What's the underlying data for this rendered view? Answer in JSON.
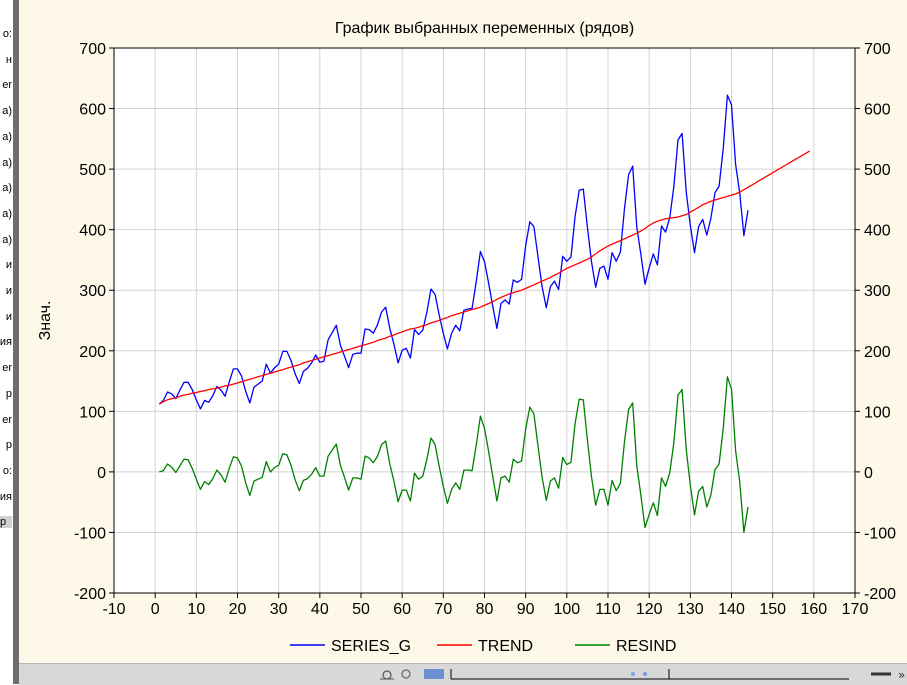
{
  "left_strip": {
    "fragments": [
      "o:",
      "н",
      "er",
      "a)",
      "a)",
      "a)",
      "a)",
      "a)",
      "a)",
      "и",
      "и",
      "и",
      "ия",
      "er",
      "р",
      "er",
      "р",
      "o:",
      "ия",
      "р"
    ],
    "selected_index": 19
  },
  "chart_data": {
    "type": "line",
    "title": "График выбранных переменных (рядов)",
    "ylabel": "Знач.",
    "xlabel": "",
    "xlim": [
      -10,
      170
    ],
    "ylim": [
      -200,
      700
    ],
    "xticks": [
      -10,
      0,
      10,
      20,
      30,
      40,
      50,
      60,
      70,
      80,
      90,
      100,
      110,
      120,
      130,
      140,
      150,
      160,
      170
    ],
    "yticks": [
      -200,
      -100,
      0,
      100,
      200,
      300,
      400,
      500,
      600,
      700
    ],
    "grid": true,
    "right_axis": true,
    "legend": "bottom",
    "series": [
      {
        "name": "SERIES_G",
        "color": "#0000ff",
        "x_start": 1,
        "values": [
          112,
          118,
          132,
          129,
          121,
          135,
          148,
          148,
          136,
          119,
          104,
          118,
          115,
          126,
          141,
          135,
          125,
          149,
          170,
          170,
          158,
          133,
          114,
          140,
          145,
          150,
          178,
          163,
          172,
          178,
          199,
          199,
          184,
          162,
          146,
          166,
          171,
          180,
          193,
          181,
          183,
          218,
          230,
          242,
          209,
          191,
          172,
          194,
          196,
          196,
          236,
          235,
          229,
          243,
          264,
          272,
          237,
          211,
          180,
          201,
          204,
          188,
          235,
          227,
          234,
          264,
          302,
          293,
          259,
          229,
          203,
          229,
          242,
          233,
          267,
          269,
          270,
          315,
          364,
          347,
          312,
          274,
          237,
          278,
          284,
          277,
          317,
          313,
          318,
          374,
          413,
          405,
          355,
          306,
          271,
          306,
          315,
          301,
          356,
          348,
          355,
          422,
          465,
          467,
          404,
          347,
          305,
          336,
          340,
          318,
          362,
          348,
          363,
          435,
          491,
          505,
          404,
          359,
          310,
          337,
          360,
          342,
          406,
          396,
          420,
          472,
          548,
          559,
          463,
          407,
          362,
          405,
          417,
          391,
          419,
          461,
          472,
          535,
          622,
          606,
          508,
          461,
          390,
          432
        ]
      },
      {
        "name": "TREND",
        "color": "#ff0000",
        "x_start": 1,
        "values": [
          112,
          116,
          119,
          121,
          122,
          125,
          127,
          128,
          130,
          131,
          133,
          134,
          136,
          137,
          138,
          140,
          142,
          143,
          145,
          147,
          149,
          151,
          153,
          155,
          157,
          159,
          161,
          163,
          165,
          167,
          169,
          171,
          173,
          175,
          177,
          180,
          182,
          184,
          186,
          188,
          190,
          192,
          194,
          196,
          198,
          200,
          202,
          204,
          206,
          208,
          210,
          212,
          214,
          217,
          219,
          221,
          224,
          226,
          229,
          231,
          234,
          236,
          237,
          239,
          241,
          243,
          246,
          248,
          250,
          253,
          255,
          258,
          260,
          262,
          264,
          266,
          268,
          270,
          272,
          275,
          278,
          281,
          285,
          288,
          291,
          294,
          296,
          298,
          300,
          303,
          306,
          309,
          312,
          315,
          318,
          321,
          325,
          328,
          332,
          336,
          339,
          342,
          345,
          348,
          351,
          355,
          360,
          365,
          369,
          373,
          376,
          379,
          382,
          385,
          388,
          391,
          394,
          398,
          402,
          407,
          411,
          414,
          416,
          418,
          419,
          420,
          421,
          423,
          425,
          429,
          433,
          437,
          441,
          444,
          447,
          449,
          451,
          453,
          455,
          457,
          459,
          462,
          466,
          470,
          474,
          478,
          482,
          486,
          490,
          494,
          498,
          502,
          506,
          510,
          514,
          518,
          522,
          526,
          530
        ]
      },
      {
        "name": "RESIND",
        "color": "#008000",
        "x_start": 1,
        "values": [
          0,
          2,
          13,
          8,
          -1,
          10,
          21,
          20,
          6,
          -12,
          -29,
          -16,
          -21,
          -11,
          3,
          -5,
          -17,
          6,
          25,
          23,
          9,
          -18,
          -39,
          -15,
          -12,
          -9,
          17,
          0,
          7,
          11,
          30,
          28,
          11,
          -13,
          -31,
          -14,
          -11,
          -4,
          7,
          -7,
          -7,
          26,
          36,
          46,
          11,
          -9,
          -30,
          -10,
          -10,
          -12,
          26,
          23,
          15,
          26,
          45,
          51,
          13,
          -15,
          -49,
          -30,
          -30,
          -48,
          -2,
          -12,
          -7,
          21,
          56,
          45,
          9,
          -24,
          -52,
          -29,
          -18,
          -29,
          3,
          3,
          2,
          45,
          92,
          72,
          34,
          -7,
          -48,
          -10,
          -7,
          -17,
          21,
          15,
          18,
          71,
          107,
          96,
          43,
          -9,
          -47,
          -15,
          -10,
          -27,
          24,
          12,
          16,
          80,
          120,
          119,
          53,
          -8,
          -55,
          -29,
          -29,
          -55,
          -14,
          -31,
          -19,
          50,
          103,
          114,
          10,
          -39,
          -92,
          -70,
          -51,
          -72,
          -10,
          -24,
          -1,
          49,
          127,
          136,
          38,
          -22,
          -71,
          -32,
          -24,
          -58,
          -38,
          4,
          13,
          73,
          157,
          137,
          35,
          -16,
          -100,
          -58
        ]
      }
    ]
  }
}
